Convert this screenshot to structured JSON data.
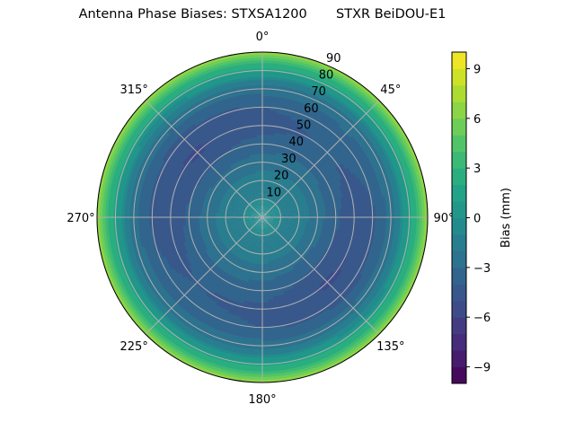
{
  "chart_data": {
    "type": "heatmap",
    "projection": "polar",
    "title": "Antenna Phase Biases: STXSA1200       STXR BeiDOU-E1",
    "theta_zero_location": "top",
    "theta_direction": "clockwise",
    "theta_tick_labels": [
      "0°",
      "45°",
      "90°",
      "135°",
      "180°",
      "225°",
      "270°",
      "315°"
    ],
    "radial_tick_labels": [
      "10",
      "20",
      "30",
      "40",
      "50",
      "60",
      "70",
      "80",
      "90"
    ],
    "radial_range": [
      0,
      90
    ],
    "grid": true,
    "azimuth_deg": [
      0,
      45,
      90,
      135,
      180,
      225,
      270,
      315
    ],
    "zenith_deg": [
      0,
      10,
      20,
      30,
      40,
      50,
      60,
      70,
      80,
      90
    ],
    "values_mm": [
      [
        -0.5,
        -1,
        -1.5,
        -2.5,
        -3.5,
        -4.5,
        -4.0,
        -2.5,
        1,
        7
      ],
      [
        -0.5,
        -1,
        -1.5,
        -2.5,
        -3.3,
        -3.8,
        -3.5,
        -2.5,
        1,
        7
      ],
      [
        -0.5,
        -1,
        -1.5,
        -2.5,
        -3.8,
        -4.8,
        -4.2,
        -2.5,
        1,
        7
      ],
      [
        -0.5,
        -1,
        -1.5,
        -2.8,
        -4.2,
        -5.2,
        -4.5,
        -2.7,
        1,
        7
      ],
      [
        -0.5,
        -1,
        -1.5,
        -2.5,
        -3.5,
        -4.3,
        -4.0,
        -2.5,
        1,
        7
      ],
      [
        -0.5,
        -1,
        -1.5,
        -2.5,
        -3.3,
        -4.0,
        -3.6,
        -2.5,
        1,
        7
      ],
      [
        -0.5,
        -1,
        -1.5,
        -2.5,
        -3.8,
        -4.8,
        -4.2,
        -2.5,
        1,
        7
      ],
      [
        -0.5,
        -1,
        -1.5,
        -2.8,
        -4.2,
        -5.2,
        -4.5,
        -2.7,
        1,
        7
      ]
    ],
    "colormap": "viridis",
    "levels": {
      "min": -10,
      "max": 10,
      "step": 1
    },
    "colorbar": {
      "label": "Bias (mm)",
      "ticks": [
        -9,
        -6,
        -3,
        0,
        3,
        6,
        9
      ],
      "tick_labels": [
        "−9",
        "−6",
        "−3",
        "0",
        "3",
        "6",
        "9"
      ]
    }
  }
}
